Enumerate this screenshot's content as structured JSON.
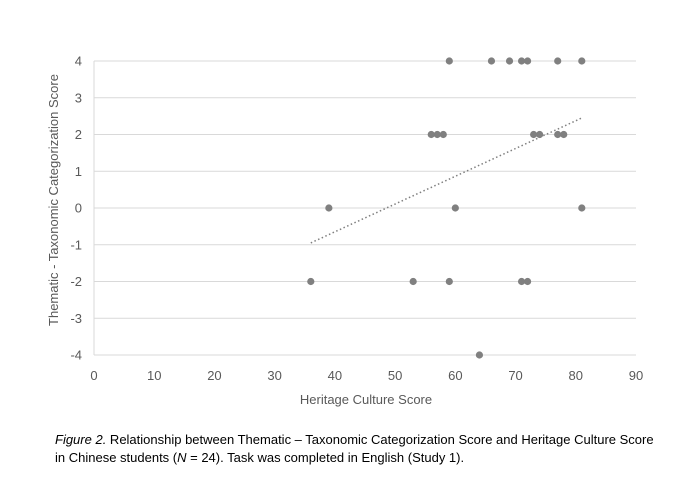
{
  "chart_data": {
    "type": "scatter",
    "xlabel": "Heritage Culture Score",
    "ylabel": "Thematic - Taxonomic Categorization Score",
    "xlim": [
      0,
      90
    ],
    "ylim": [
      -4,
      4
    ],
    "xticks": [
      "0",
      "10",
      "20",
      "30",
      "40",
      "50",
      "60",
      "70",
      "80",
      "90"
    ],
    "yticks": [
      "4",
      "3",
      "2",
      "1",
      "0",
      "-1",
      "-2",
      "-3",
      "-4"
    ],
    "grid": "horizontal",
    "legend": "none",
    "marker_color": "#808080",
    "trendline": {
      "type": "linear",
      "style": "dotted",
      "x": [
        36,
        81
      ],
      "y": [
        -0.95,
        2.45
      ]
    },
    "points": [
      {
        "x": 59,
        "y": 4
      },
      {
        "x": 66,
        "y": 4
      },
      {
        "x": 69,
        "y": 4
      },
      {
        "x": 71,
        "y": 4
      },
      {
        "x": 72,
        "y": 4
      },
      {
        "x": 77,
        "y": 4
      },
      {
        "x": 81,
        "y": 4
      },
      {
        "x": 56,
        "y": 2
      },
      {
        "x": 57,
        "y": 2
      },
      {
        "x": 58,
        "y": 2
      },
      {
        "x": 73,
        "y": 2
      },
      {
        "x": 74,
        "y": 2
      },
      {
        "x": 77,
        "y": 2
      },
      {
        "x": 78,
        "y": 2
      },
      {
        "x": 39,
        "y": 0
      },
      {
        "x": 60,
        "y": 0
      },
      {
        "x": 81,
        "y": 0
      },
      {
        "x": 36,
        "y": -2
      },
      {
        "x": 53,
        "y": -2
      },
      {
        "x": 59,
        "y": -2
      },
      {
        "x": 71,
        "y": -2
      },
      {
        "x": 72,
        "y": -2
      },
      {
        "x": 64,
        "y": -4
      }
    ]
  },
  "caption": {
    "figure_label": "Figure 2.",
    "text_1": " Relationship between Thematic – Taxonomic Categorization Score and Heritage Culture Score in Chinese students (",
    "n_symbol": "N",
    "text_2": " = 24). Task was completed in English (Study 1)."
  }
}
